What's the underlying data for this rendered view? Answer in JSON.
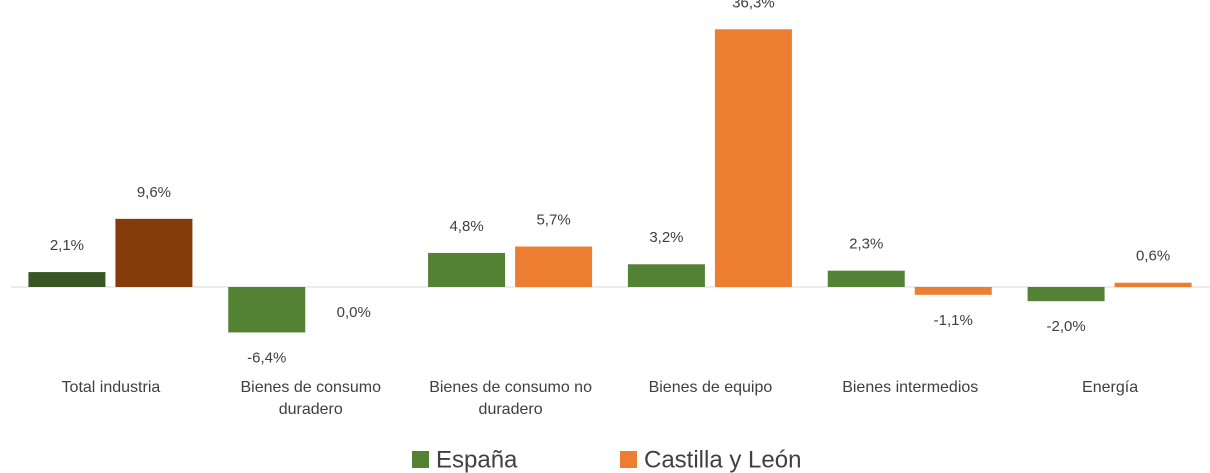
{
  "chart_data": {
    "type": "bar",
    "categories": [
      "Total industria",
      "Bienes de consumo duradero",
      "Bienes de consumo no duradero",
      "Bienes de equipo",
      "Bienes intermedios",
      "Energía"
    ],
    "series": [
      {
        "name": "España",
        "color": "#548235",
        "colors": [
          "#375623",
          "#548235",
          "#548235",
          "#548235",
          "#548235",
          "#548235"
        ],
        "values": [
          2.1,
          -6.4,
          4.8,
          3.2,
          2.3,
          -2.0
        ],
        "value_labels": [
          "2,1%",
          "-6,4%",
          "4,8%",
          "3,2%",
          "2,3%",
          "-2,0%"
        ]
      },
      {
        "name": "Castilla y León",
        "color": "#ed7d31",
        "colors": [
          "#843c0c",
          "#ed7d31",
          "#ed7d31",
          "#ed7d31",
          "#ed7d31",
          "#ed7d31"
        ],
        "values": [
          9.6,
          0.0,
          5.7,
          36.3,
          -1.1,
          0.6
        ],
        "value_labels": [
          "9,6%",
          "0,0%",
          "5,7%",
          "36,3%",
          "-1,1%",
          "0,6%"
        ]
      }
    ],
    "ylim": [
      -10,
      40
    ],
    "legend": "bottom"
  }
}
